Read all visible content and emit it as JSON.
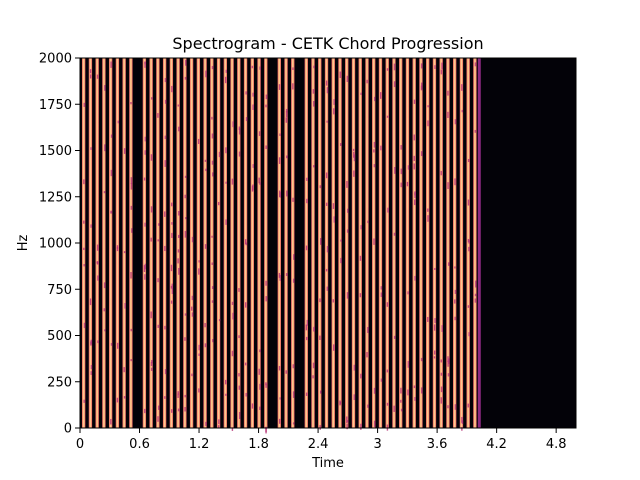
{
  "chart_data": {
    "type": "heatmap",
    "title": "Spectrogram - CETK Chord Progression",
    "xlabel": "Time",
    "ylabel": "Hz",
    "xlim": [
      0,
      5.0
    ],
    "ylim": [
      0,
      2000
    ],
    "x_ticks": [
      0,
      0.6,
      1.2,
      1.8,
      2.4,
      3.0,
      3.6,
      4.2,
      4.8
    ],
    "x_tick_labels": [
      "0",
      "0.6",
      "1.2",
      "1.8",
      "2.4",
      "3",
      "3.6",
      "4.2",
      "4.8"
    ],
    "y_ticks": [
      0,
      250,
      500,
      750,
      1000,
      1250,
      1500,
      1750,
      2000
    ],
    "y_tick_labels": [
      "0",
      "250",
      "500",
      "750",
      "1000",
      "1250",
      "1500",
      "1750",
      "2000"
    ],
    "colormap": "magma",
    "colors": {
      "background": "#030208",
      "band_core": "#fed9a0",
      "band_mid": "#fb9b6a",
      "band_edge": "#e0516f",
      "band_dim": "#8c2981",
      "speckle": "#b73779"
    },
    "signal_end_time": 4.04,
    "band_period": 0.068,
    "band_width": 0.034,
    "gap_times": [
      0.59,
      1.93,
      2.22
    ]
  }
}
